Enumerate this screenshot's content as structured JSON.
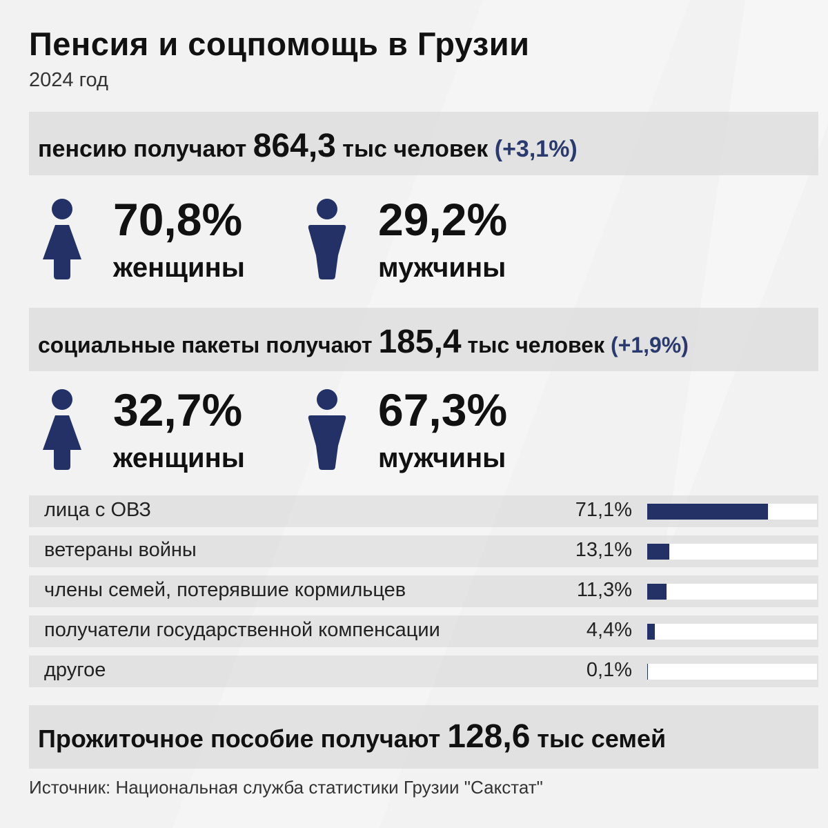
{
  "header": {
    "title": "Пенсия и соцпомощь в Грузии",
    "subtitle": "2024 год"
  },
  "pension": {
    "prefix": "пенсию получают ",
    "value": "864,3",
    "suffix": " тыс человек ",
    "change": "(+3,1%)",
    "women": {
      "pct": "70,8%",
      "label": "женщины",
      "icon": "woman-icon"
    },
    "men": {
      "pct": "29,2%",
      "label": "мужчины",
      "icon": "man-icon"
    }
  },
  "social": {
    "prefix": "социальные пакеты получают ",
    "value": "185,4",
    "suffix": " тыс человек ",
    "change": "(+1,9%)",
    "women": {
      "pct": "32,7%",
      "label": "женщины",
      "icon": "woman-icon"
    },
    "men": {
      "pct": "67,3%",
      "label": "мужчины",
      "icon": "man-icon"
    }
  },
  "chart_data": {
    "type": "bar",
    "orientation": "horizontal",
    "title": "социальные пакеты получают 185,4 тыс человек (+1,9%)",
    "unit": "%",
    "categories": [
      "лица с ОВЗ",
      "ветераны войны",
      "члены семей, потерявшие кормильцев",
      "получатели государственной компенсации",
      "другое"
    ],
    "values": [
      71.1,
      13.1,
      11.3,
      4.4,
      0.1
    ],
    "value_labels": [
      "71,1%",
      "13,1%",
      "11,3%",
      "4,4%",
      "0,1%"
    ],
    "xlim": [
      0,
      100
    ]
  },
  "subsistence": {
    "prefix": "Прожиточное пособие получают ",
    "value": "128,6",
    "suffix": " тыс семей"
  },
  "footer": {
    "source": "Источник: Национальная служба статистики Грузии \"Сакстат\""
  },
  "colors": {
    "accent": "#233167",
    "accent_text": "#2b3a6e",
    "background": "#f2f2f2",
    "band": "#d6d6d6"
  }
}
